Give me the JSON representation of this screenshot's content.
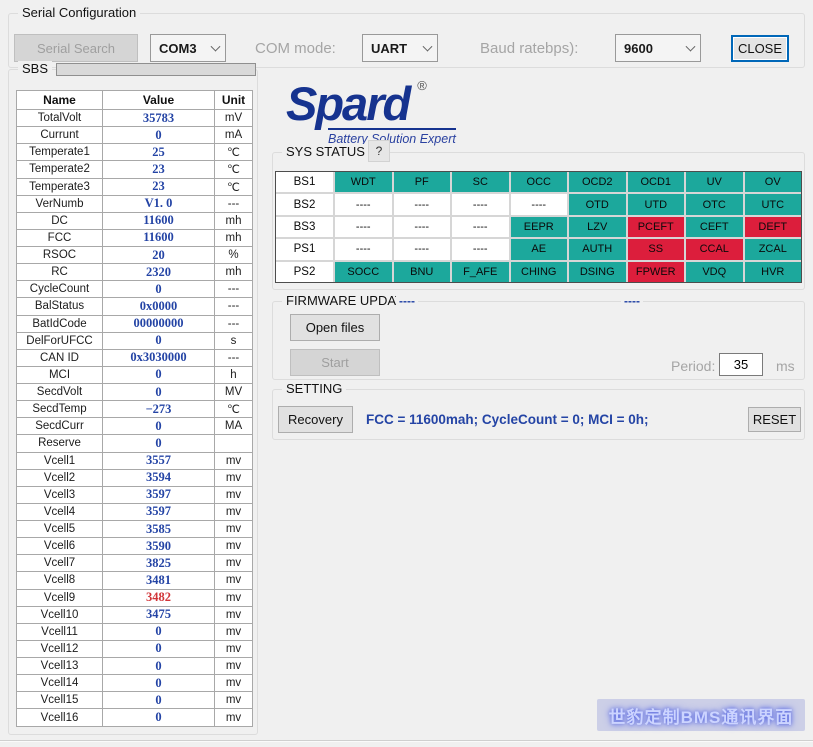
{
  "colors": {
    "accent_blue": "#2444A5",
    "alert_red_text": "#D13438",
    "teal": "#1CA89C",
    "status_red": "#DC1E3C",
    "logo_blue": "#16338F"
  },
  "serial": {
    "group_label": "Serial Configuration",
    "search_button": "Serial Search",
    "com_port": "COM3",
    "com_mode_label": "COM mode:",
    "com_mode": "UART",
    "baud_label": "Baud ratebps):",
    "baud_rate": "9600",
    "close_button": "CLOSE"
  },
  "sbs": {
    "group_label": "SBS",
    "columns": [
      "Name",
      "Value",
      "Unit"
    ],
    "rows": [
      {
        "name": "TotalVolt",
        "value": "35783",
        "unit": "mV"
      },
      {
        "name": "Currunt",
        "value": "0",
        "unit": "mA"
      },
      {
        "name": "Temperate1",
        "value": "25",
        "unit": "℃"
      },
      {
        "name": "Temperate2",
        "value": "23",
        "unit": "℃"
      },
      {
        "name": "Temperate3",
        "value": "23",
        "unit": "℃"
      },
      {
        "name": "VerNumb",
        "value": "V1. 0",
        "unit": "---"
      },
      {
        "name": "DC",
        "value": "11600",
        "unit": "mh"
      },
      {
        "name": "FCC",
        "value": "11600",
        "unit": "mh"
      },
      {
        "name": "RSOC",
        "value": "20",
        "unit": "%"
      },
      {
        "name": "RC",
        "value": "2320",
        "unit": "mh"
      },
      {
        "name": "CycleCount",
        "value": "0",
        "unit": "---"
      },
      {
        "name": "BalStatus",
        "value": "0x0000",
        "unit": "---"
      },
      {
        "name": "BatIdCode",
        "value": "00000000",
        "unit": "---"
      },
      {
        "name": "DelForUFCC",
        "value": "0",
        "unit": "s"
      },
      {
        "name": "CAN ID",
        "value": "0x3030000",
        "unit": "---"
      },
      {
        "name": "MCI",
        "value": "0",
        "unit": "h"
      },
      {
        "name": "SecdVolt",
        "value": "0",
        "unit": "MV"
      },
      {
        "name": "SecdTemp",
        "value": "−273",
        "unit": "℃"
      },
      {
        "name": "SecdCurr",
        "value": "0",
        "unit": "MA"
      },
      {
        "name": "Reserve",
        "value": "0",
        "unit": ""
      },
      {
        "name": "Vcell1",
        "value": "3557",
        "unit": "mv"
      },
      {
        "name": "Vcell2",
        "value": "3594",
        "unit": "mv"
      },
      {
        "name": "Vcell3",
        "value": "3597",
        "unit": "mv"
      },
      {
        "name": "Vcell4",
        "value": "3597",
        "unit": "mv"
      },
      {
        "name": "Vcell5",
        "value": "3585",
        "unit": "mv"
      },
      {
        "name": "Vcell6",
        "value": "3590",
        "unit": "mv"
      },
      {
        "name": "Vcell7",
        "value": "3825",
        "unit": "mv"
      },
      {
        "name": "Vcell8",
        "value": "3481",
        "unit": "mv"
      },
      {
        "name": "Vcell9",
        "value": "3482",
        "unit": "mv",
        "alert": true
      },
      {
        "name": "Vcell10",
        "value": "3475",
        "unit": "mv"
      },
      {
        "name": "Vcell11",
        "value": "0",
        "unit": "mv"
      },
      {
        "name": "Vcell12",
        "value": "0",
        "unit": "mv"
      },
      {
        "name": "Vcell13",
        "value": "0",
        "unit": "mv"
      },
      {
        "name": "Vcell14",
        "value": "0",
        "unit": "mv"
      },
      {
        "name": "Vcell15",
        "value": "0",
        "unit": "mv"
      },
      {
        "name": "Vcell16",
        "value": "0",
        "unit": "mv"
      }
    ]
  },
  "logo": {
    "word": "Spard",
    "registered": "®",
    "tagline": "Battery Solution Expert"
  },
  "sys_status": {
    "group_label": "SYS STATUS",
    "help_button": "?",
    "rows": [
      {
        "label": "BS1",
        "cells": [
          {
            "text": "WDT",
            "state": "on"
          },
          {
            "text": "PF",
            "state": "on"
          },
          {
            "text": "SC",
            "state": "on"
          },
          {
            "text": "OCC",
            "state": "on"
          },
          {
            "text": "OCD2",
            "state": "on"
          },
          {
            "text": "OCD1",
            "state": "on"
          },
          {
            "text": "UV",
            "state": "on"
          },
          {
            "text": "OV",
            "state": "on"
          }
        ]
      },
      {
        "label": "BS2",
        "cells": [
          {
            "text": "----",
            "state": "off"
          },
          {
            "text": "----",
            "state": "off"
          },
          {
            "text": "----",
            "state": "off"
          },
          {
            "text": "----",
            "state": "off"
          },
          {
            "text": "OTD",
            "state": "on"
          },
          {
            "text": "UTD",
            "state": "on"
          },
          {
            "text": "OTC",
            "state": "on"
          },
          {
            "text": "UTC",
            "state": "on"
          }
        ]
      },
      {
        "label": "BS3",
        "cells": [
          {
            "text": "----",
            "state": "off"
          },
          {
            "text": "----",
            "state": "off"
          },
          {
            "text": "----",
            "state": "off"
          },
          {
            "text": "EEPR",
            "state": "on"
          },
          {
            "text": "LZV",
            "state": "on"
          },
          {
            "text": "PCEFT",
            "state": "alert"
          },
          {
            "text": "CEFT",
            "state": "on"
          },
          {
            "text": "DEFT",
            "state": "alert"
          }
        ]
      },
      {
        "label": "PS1",
        "cells": [
          {
            "text": "----",
            "state": "off"
          },
          {
            "text": "----",
            "state": "off"
          },
          {
            "text": "----",
            "state": "off"
          },
          {
            "text": "AE",
            "state": "on"
          },
          {
            "text": "AUTH",
            "state": "on"
          },
          {
            "text": "SS",
            "state": "alert"
          },
          {
            "text": "CCAL",
            "state": "alert"
          },
          {
            "text": "ZCAL",
            "state": "on"
          }
        ]
      },
      {
        "label": "PS2",
        "cells": [
          {
            "text": "SOCC",
            "state": "on"
          },
          {
            "text": "BNU",
            "state": "on"
          },
          {
            "text": "F_AFE",
            "state": "on"
          },
          {
            "text": "CHING",
            "state": "on"
          },
          {
            "text": "DSING",
            "state": "on"
          },
          {
            "text": "FPWER",
            "state": "alert"
          },
          {
            "text": "VDQ",
            "state": "on"
          },
          {
            "text": "HVR",
            "state": "on"
          }
        ]
      }
    ]
  },
  "firmware": {
    "group_label": "FIRMWARE UPDAT",
    "file_info_1": "----",
    "file_info_2": "----",
    "open_button": "Open files",
    "start_button": "Start",
    "period_label": "Period:",
    "period_value": "35",
    "period_unit": "ms"
  },
  "setting": {
    "group_label": "SETTING",
    "recovery_button": "Recovery",
    "info_text": "FCC = 11600mah; CycleCount = 0; MCI = 0h;",
    "reset_button": "RESET"
  },
  "watermark": "世豹定制BMS通讯界面"
}
